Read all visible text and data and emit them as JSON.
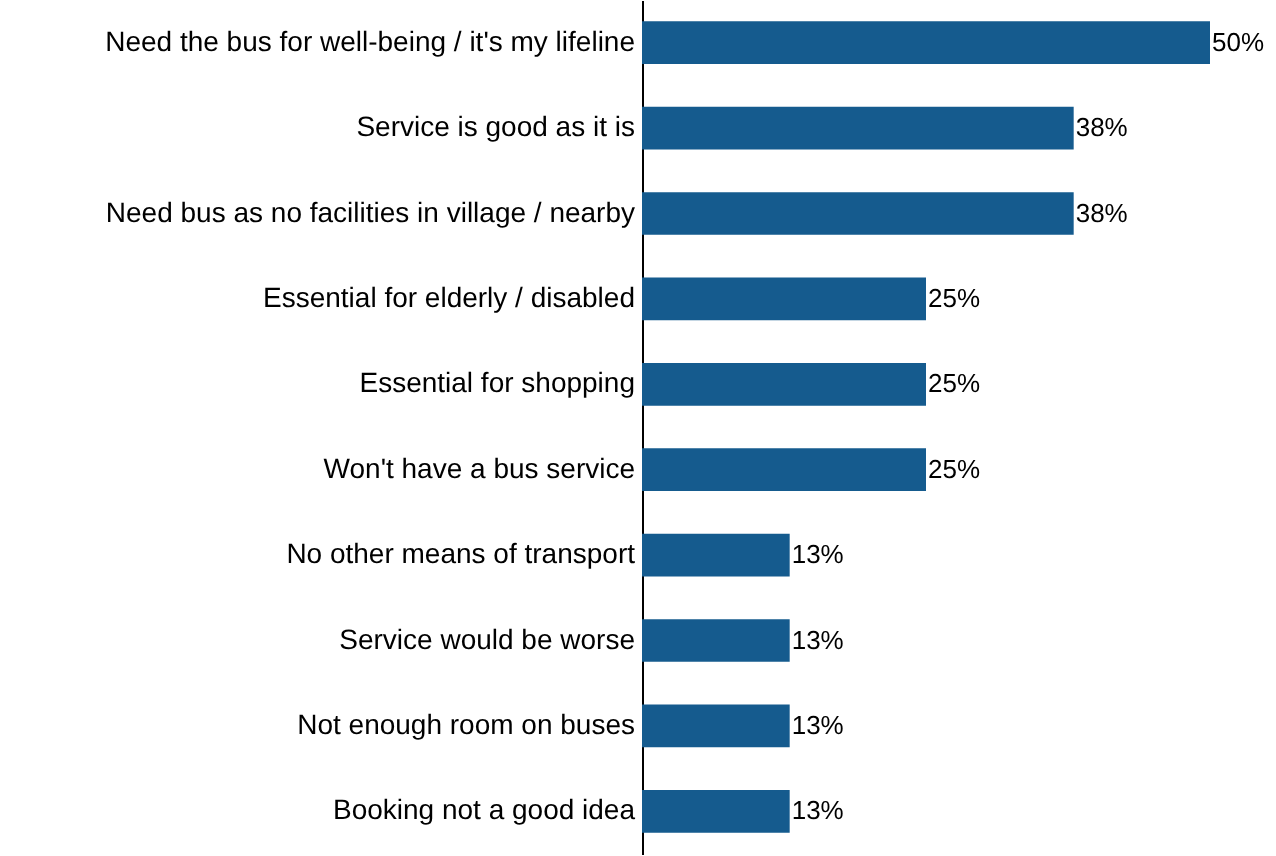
{
  "chart_data": {
    "type": "bar",
    "orientation": "horizontal",
    "categories": [
      "Need the bus for well-being / it's my lifeline",
      "Service is good as it is",
      "Need bus as no facilities in village / nearby",
      "Essential for elderly / disabled",
      "Essential for shopping",
      "Won't have a bus service",
      "No other means of transport",
      "Service would be worse",
      "Not enough room on buses",
      "Booking not a good idea"
    ],
    "values": [
      50,
      38,
      38,
      25,
      25,
      25,
      13,
      13,
      13,
      13
    ],
    "value_labels": [
      "50%",
      "38%",
      "38%",
      "25%",
      "25%",
      "25%",
      "13%",
      "13%",
      "13%",
      "13%"
    ],
    "color": "#155b8e"
  }
}
